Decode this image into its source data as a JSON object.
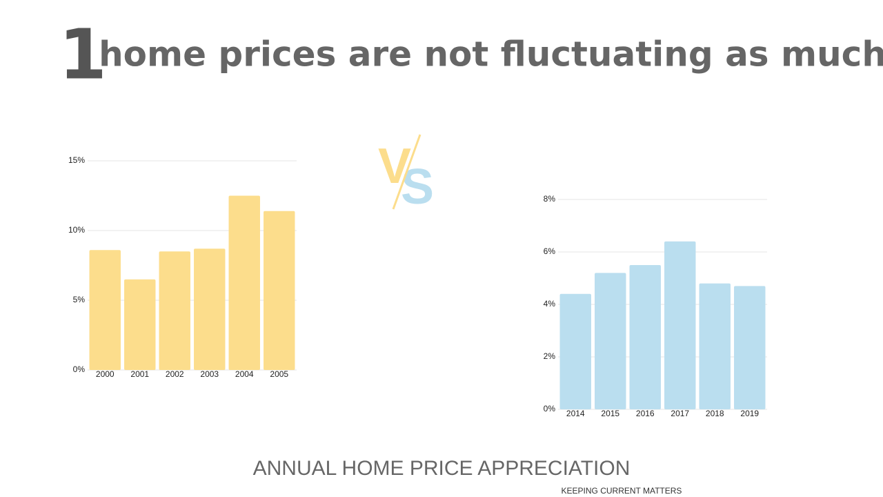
{
  "header": {
    "number": "1",
    "title": "home prices are not fluctuating as much"
  },
  "vs_logo": {
    "first": "V",
    "second": "S"
  },
  "footer": {
    "caption": "ANNUAL HOME PRICE APPRECIATION",
    "brand": "KEEPING CURRENT MATTERS"
  },
  "chart_data": [
    {
      "type": "bar",
      "categories": [
        "2000",
        "2001",
        "2002",
        "2003",
        "2004",
        "2005"
      ],
      "values": [
        8.6,
        6.5,
        8.5,
        8.7,
        12.5,
        11.4
      ],
      "color": "#fcdd8c",
      "ylim": [
        0,
        15
      ],
      "yticks": [
        {
          "value": 0,
          "label": "0%"
        },
        {
          "value": 5,
          "label": "5%"
        },
        {
          "value": 10,
          "label": "10%"
        },
        {
          "value": 15,
          "label": "15%"
        }
      ],
      "grid": true
    },
    {
      "type": "bar",
      "categories": [
        "2014",
        "2015",
        "2016",
        "2017",
        "2018",
        "2019"
      ],
      "values": [
        4.4,
        5.2,
        5.5,
        6.4,
        4.8,
        4.7
      ],
      "color": "#badeef",
      "ylim": [
        0,
        8
      ],
      "yticks": [
        {
          "value": 0,
          "label": "0%"
        },
        {
          "value": 2,
          "label": "2%"
        },
        {
          "value": 4,
          "label": "4%"
        },
        {
          "value": 6,
          "label": "6%"
        },
        {
          "value": 8,
          "label": "8%"
        }
      ],
      "grid": true
    }
  ]
}
